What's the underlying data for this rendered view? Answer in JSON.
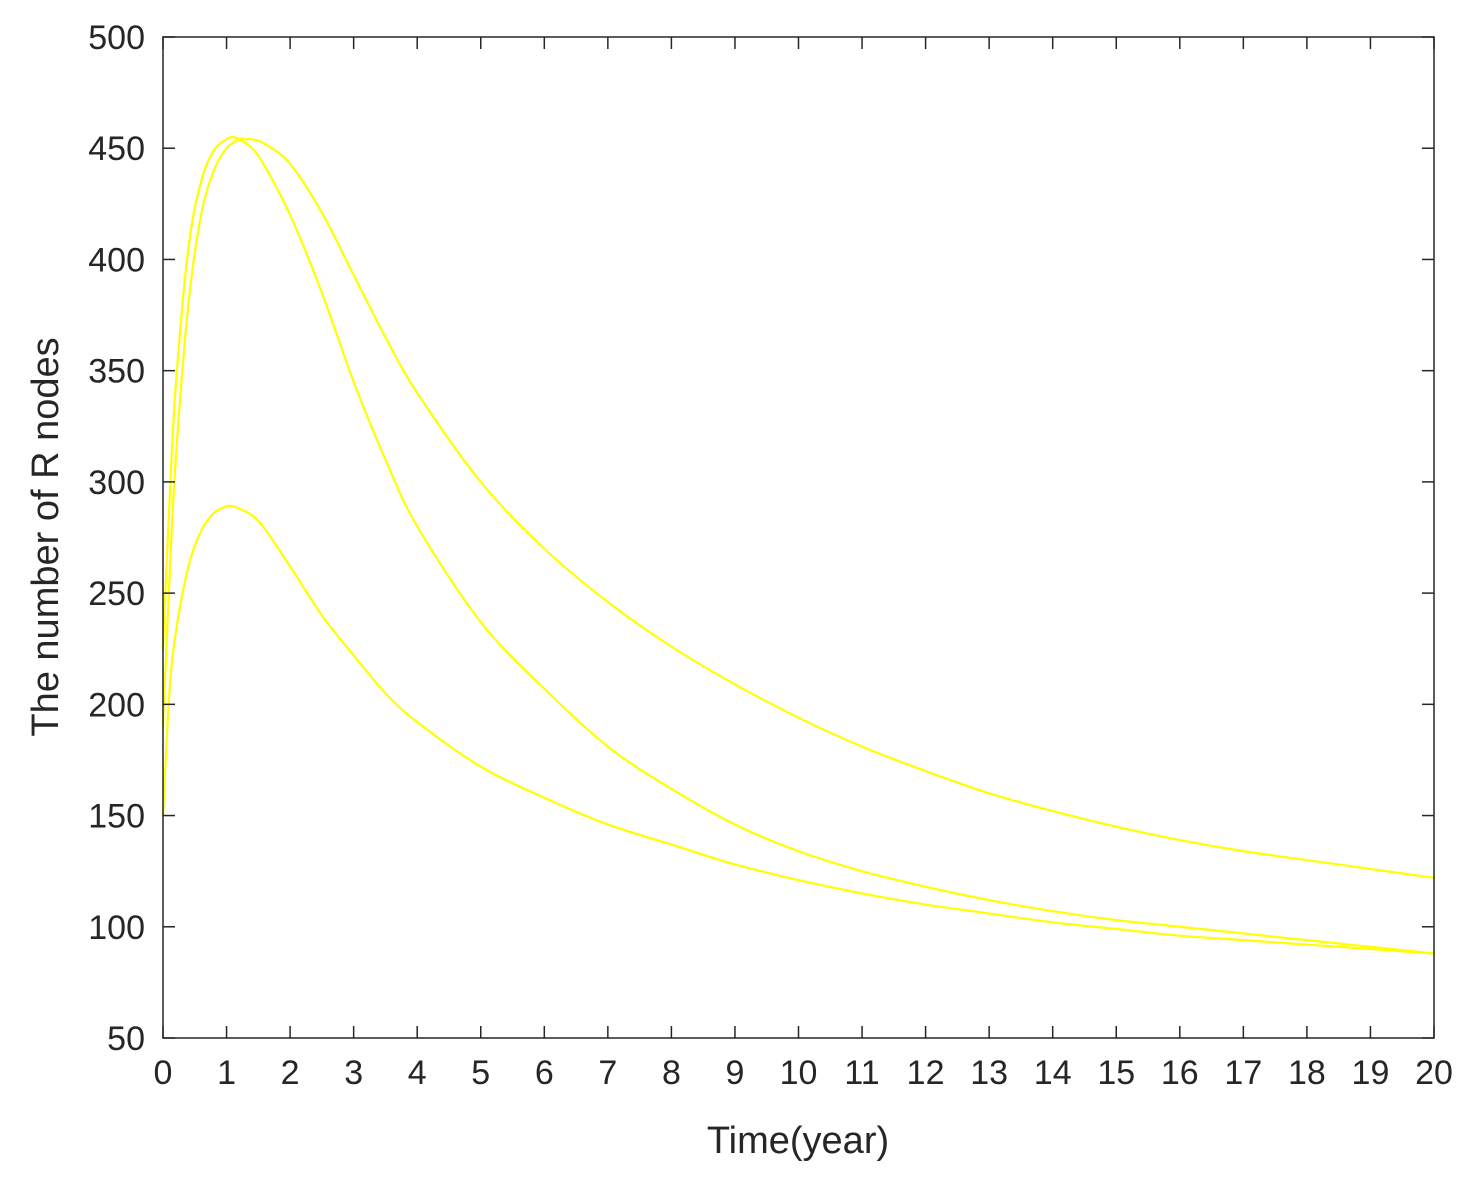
{
  "chart_data": {
    "type": "line",
    "title": "",
    "xlabel": "Time(year)",
    "ylabel": "The number of R nodes",
    "xlim": [
      0,
      20
    ],
    "ylim": [
      50,
      500
    ],
    "xticks": [
      0,
      1,
      2,
      3,
      4,
      5,
      6,
      7,
      8,
      9,
      10,
      11,
      12,
      13,
      14,
      15,
      16,
      17,
      18,
      19,
      20
    ],
    "yticks": [
      50,
      100,
      150,
      200,
      250,
      300,
      350,
      400,
      450,
      500
    ],
    "grid": false,
    "legend": "none",
    "line_color": "#ffff00",
    "series": [
      {
        "x": [
          0,
          0.1,
          0.2,
          0.4,
          0.6,
          0.8,
          1.0,
          1.1,
          1.2,
          1.4,
          1.6,
          2.0,
          2.5,
          3.0,
          3.5,
          4.0,
          5.0,
          6.0,
          7.0,
          8.0,
          9.0,
          10.0,
          11.0,
          12.0,
          13.0,
          14.0,
          15.0,
          16.0,
          17.0,
          18.0,
          19.0,
          20.0
        ],
        "values": [
          150,
          205,
          232,
          262,
          278,
          286,
          289,
          289,
          288,
          285,
          279,
          262,
          240,
          222,
          205,
          192,
          172,
          158,
          146,
          137,
          128,
          121,
          115,
          110,
          106,
          102,
          99,
          96,
          94,
          92,
          90,
          88
        ]
      },
      {
        "x": [
          0,
          0.1,
          0.2,
          0.4,
          0.6,
          0.8,
          1.0,
          1.1,
          1.2,
          1.4,
          1.6,
          2.0,
          2.5,
          3.0,
          3.5,
          4.0,
          5.0,
          6.0,
          7.0,
          8.0,
          9.0,
          10.0,
          11.0,
          12.0,
          13.0,
          14.0,
          15.0,
          16.0,
          17.0,
          18.0,
          19.0,
          20.0
        ],
        "values": [
          225,
          290,
          343,
          405,
          435,
          449,
          454,
          455,
          454,
          450,
          442,
          420,
          385,
          345,
          310,
          280,
          237,
          207,
          181,
          162,
          146,
          134,
          125,
          118,
          112,
          107,
          103,
          100,
          97,
          94,
          91,
          88
        ]
      },
      {
        "x": [
          0,
          0.1,
          0.2,
          0.4,
          0.6,
          0.8,
          1.0,
          1.2,
          1.3,
          1.4,
          1.6,
          2.0,
          2.5,
          3.0,
          3.5,
          4.0,
          5.0,
          6.0,
          7.0,
          8.0,
          9.0,
          10.0,
          11.0,
          12.0,
          13.0,
          14.0,
          15.0,
          16.0,
          17.0,
          18.0,
          19.0,
          20.0
        ],
        "values": [
          190,
          255,
          310,
          380,
          420,
          440,
          450,
          454,
          454,
          454,
          452,
          443,
          421,
          393,
          365,
          340,
          300,
          270,
          246,
          226,
          209,
          194,
          181,
          170,
          160,
          152,
          145,
          139,
          134,
          130,
          126,
          122
        ]
      }
    ]
  }
}
